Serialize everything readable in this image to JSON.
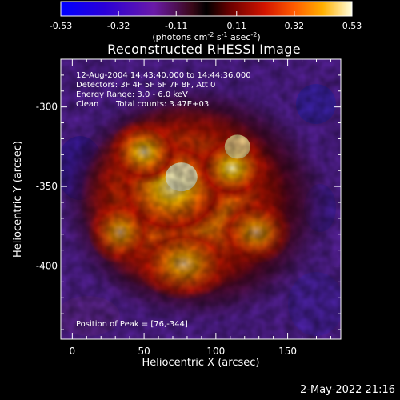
{
  "colorbar": {
    "tick_labels": [
      "-0.53",
      "-0.32",
      "-0.11",
      "0.11",
      "0.32",
      "0.53"
    ],
    "tick_values": [
      -0.53,
      -0.32,
      -0.11,
      0.11,
      0.32,
      0.53
    ],
    "range": [
      -0.53,
      0.53
    ],
    "units_prefix": "(photons cm",
    "units_exp1": "-2",
    "units_mid": " s",
    "units_exp2": "-1",
    "units_mid2": " asec",
    "units_exp3": "-2",
    "units_suffix": ")"
  },
  "title": "Reconstructed RHESSI Image",
  "info": {
    "time_range": "12-Aug-2004 14:43:40.000 to 14:44:36.000",
    "detectors": "Detectors: 3F 4F 5F 6F 7F 8F, Att 0",
    "energy_range": "Energy Range: 3.0 - 6.0 keV",
    "clean_label": "Clean",
    "total_counts": "Total counts: 3.47E+03"
  },
  "peak_label": "Position of Peak = [76,-344]",
  "axes": {
    "xlabel": "Heliocentric X (arcsec)",
    "ylabel": "Heliocentric Y (arcsec)",
    "x_ticks": [
      "0",
      "50",
      "100",
      "150"
    ],
    "x_tick_values": [
      0,
      50,
      100,
      150
    ],
    "y_ticks": [
      "-300",
      "-350",
      "-400"
    ],
    "y_tick_values": [
      -300,
      -350,
      -400
    ],
    "xlim": [
      -8,
      187
    ],
    "ylim": [
      -446,
      -270
    ]
  },
  "image": {
    "peak": [
      76,
      -344
    ],
    "secondary_peak": [
      115,
      -325
    ]
  },
  "timestamp": "2-May-2022 21:16",
  "colors": {
    "background": "#000000",
    "text": "#ffffff"
  }
}
